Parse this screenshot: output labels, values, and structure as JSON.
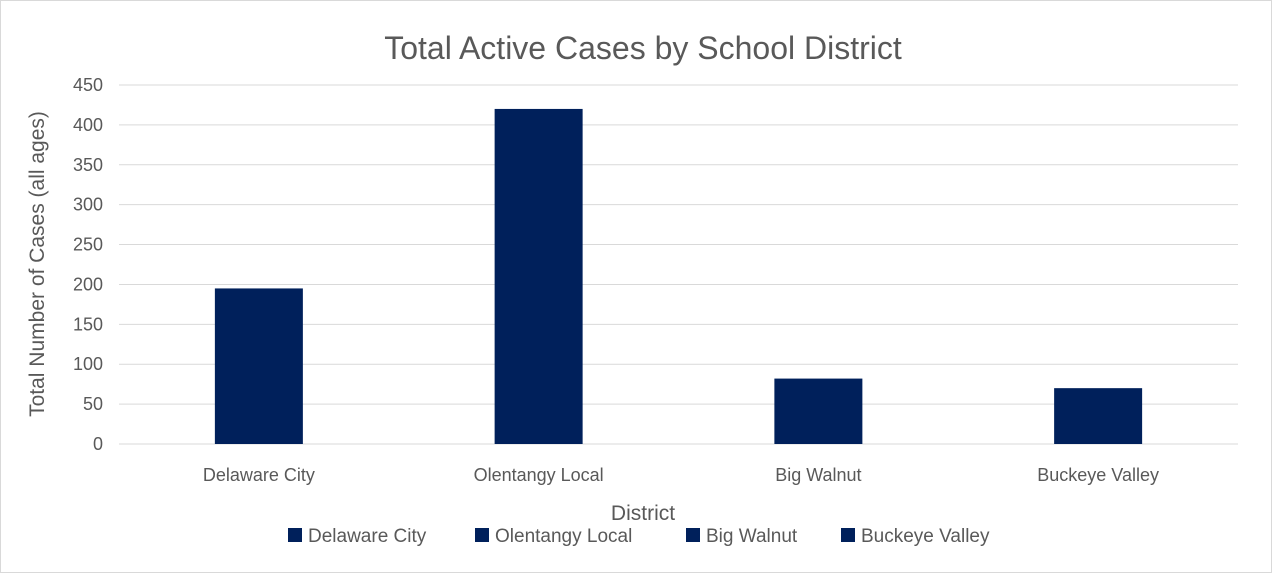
{
  "chart_data": {
    "type": "bar",
    "title": "Total Active Cases by School District",
    "xlabel": "District",
    "ylabel": "Total Number of Cases (all ages)",
    "categories": [
      "Delaware City",
      "Olentangy Local",
      "Big Walnut",
      "Buckeye Valley"
    ],
    "values": [
      195,
      420,
      82,
      70
    ],
    "ylim": [
      0,
      450
    ],
    "yticks": [
      "0",
      "50",
      "100",
      "150",
      "200",
      "250",
      "300",
      "350",
      "400",
      "450"
    ],
    "bar_color": "#00205b",
    "grid": true,
    "legend": {
      "position": "bottom",
      "entries": [
        "Delaware City",
        "Olentangy Local",
        "Big Walnut",
        "Buckeye Valley"
      ]
    }
  }
}
